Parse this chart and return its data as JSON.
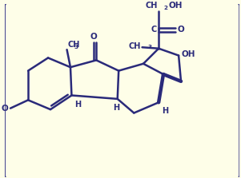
{
  "bg_color": "#FEFEE8",
  "border_color": "#3a3a8a",
  "molecule_color": "#2a2a7a",
  "lw": 1.8,
  "blw": 3.2,
  "figsize": [
    3.01,
    2.23
  ],
  "dpi": 100,
  "xlim": [
    0,
    10
  ],
  "ylim": [
    0,
    7.4
  ],
  "fs": 7.0,
  "fs_sub": 5.2
}
